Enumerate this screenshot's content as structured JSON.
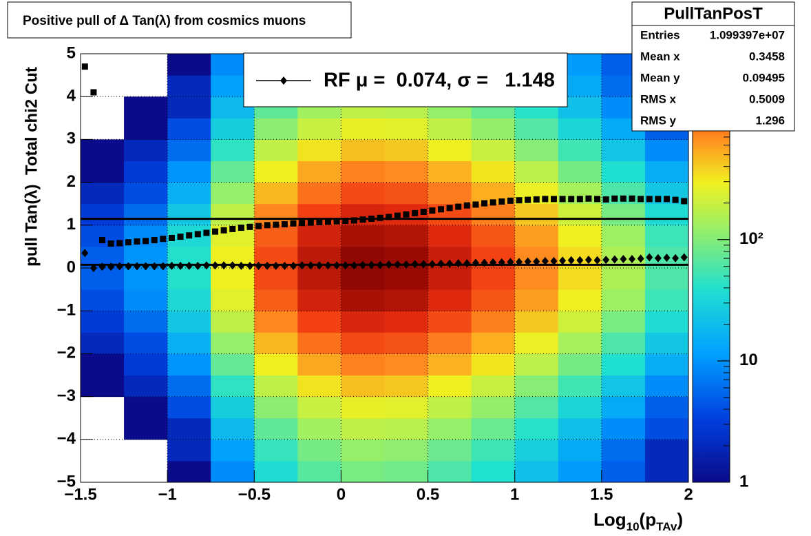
{
  "chart_data": {
    "type": "heatmap",
    "title": "Positive pull of Δ Tan(λ) from cosmics muons",
    "xlabel": [
      "Log",
      "10",
      "(p",
      "TAv",
      ")"
    ],
    "ylabel": "pull Tan(λ)  Total chi2 Cut",
    "xlim": [
      -1.5,
      2
    ],
    "ylim": [
      -5,
      5
    ],
    "zlim": [
      1,
      3400
    ],
    "zlog": true,
    "grid": true,
    "xticks": [
      {
        "value": -1.5,
        "label": "−1.5"
      },
      {
        "value": -1,
        "label": "−1"
      },
      {
        "value": -0.5,
        "label": "−0.5"
      },
      0,
      0.5,
      1,
      1.5,
      2
    ],
    "yticks": [
      {
        "value": -5,
        "label": "−5"
      },
      {
        "value": -4,
        "label": "−4"
      },
      {
        "value": -3,
        "label": "−3"
      },
      {
        "value": -2,
        "label": "−2"
      },
      {
        "value": -1,
        "label": "−1"
      },
      0,
      1,
      2,
      3,
      4,
      5
    ],
    "zticks": [
      1,
      10,
      {
        "value": 100,
        "label": "10²"
      }
    ],
    "x_bins": [
      -1.5,
      -1.25,
      -1,
      -0.75,
      -0.5,
      -0.25,
      0,
      0.25,
      0.5,
      0.75,
      1,
      1.25,
      1.5,
      1.75,
      2
    ],
    "y_bins": [
      -5,
      -4.5,
      -4,
      -3.5,
      -3,
      -2.5,
      -2,
      -1.5,
      -1,
      -0.5,
      0,
      0.5,
      1,
      1.5,
      2,
      2.5,
      3,
      3.5,
      4,
      4.5,
      5
    ],
    "values": [
      [
        0,
        0,
        1,
        9,
        36,
        66,
        90,
        84,
        60,
        39,
        21,
        11,
        5,
        2
      ],
      [
        0,
        0,
        2,
        12,
        48,
        88,
        120,
        112,
        80,
        52,
        28,
        14,
        6,
        2
      ],
      [
        0,
        1,
        2,
        18,
        72,
        132,
        180,
        168,
        120,
        78,
        42,
        21,
        9,
        4
      ],
      [
        0,
        1,
        4,
        27,
        108,
        198,
        270,
        252,
        180,
        117,
        63,
        32,
        14,
        5
      ],
      [
        1,
        2,
        6,
        45,
        180,
        330,
        450,
        420,
        300,
        195,
        105,
        53,
        23,
        9
      ],
      [
        1,
        3,
        10,
        75,
        300,
        550,
        750,
        700,
        500,
        325,
        175,
        88,
        38,
        15
      ],
      [
        2,
        4,
        16,
        120,
        480,
        880,
        1200,
        1120,
        800,
        520,
        280,
        140,
        60,
        24
      ],
      [
        3,
        6,
        24,
        180,
        720,
        1320,
        1800,
        1680,
        1200,
        780,
        420,
        210,
        90,
        36
      ],
      [
        4,
        9,
        34,
        255,
        1020,
        1870,
        2550,
        2380,
        1700,
        1105,
        595,
        298,
        128,
        51
      ],
      [
        5,
        10,
        40,
        300,
        1200,
        2200,
        3000,
        2800,
        2000,
        1300,
        700,
        350,
        150,
        60
      ],
      [
        5,
        10,
        40,
        300,
        1200,
        2200,
        3000,
        2800,
        2000,
        1300,
        700,
        350,
        150,
        60
      ],
      [
        4,
        9,
        34,
        255,
        1020,
        1870,
        2550,
        2380,
        1700,
        1105,
        595,
        298,
        128,
        51
      ],
      [
        3,
        6,
        24,
        180,
        720,
        1320,
        1800,
        1680,
        1200,
        780,
        420,
        210,
        90,
        36
      ],
      [
        2,
        4,
        16,
        120,
        480,
        880,
        1200,
        1120,
        800,
        520,
        280,
        140,
        60,
        24
      ],
      [
        1,
        3,
        10,
        75,
        300,
        550,
        750,
        700,
        500,
        325,
        175,
        88,
        38,
        15
      ],
      [
        1,
        2,
        6,
        45,
        180,
        330,
        450,
        420,
        300,
        195,
        105,
        53,
        23,
        9
      ],
      [
        0,
        1,
        4,
        27,
        108,
        198,
        270,
        252,
        180,
        117,
        63,
        32,
        14,
        5
      ],
      [
        0,
        1,
        2,
        18,
        72,
        132,
        180,
        168,
        120,
        78,
        42,
        21,
        9,
        4
      ],
      [
        0,
        0,
        2,
        12,
        48,
        88,
        120,
        112,
        80,
        52,
        28,
        14,
        6,
        2
      ],
      [
        0,
        0,
        1,
        9,
        36,
        66,
        90,
        84,
        60,
        39,
        21,
        11,
        5,
        2
      ]
    ],
    "x": [
      -1.475,
      -1.425,
      -1.375,
      -1.325,
      -1.275,
      -1.225,
      -1.175,
      -1.125,
      -1.075,
      -1.025,
      -0.975,
      -0.925,
      -0.875,
      -0.825,
      -0.775,
      -0.725,
      -0.675,
      -0.625,
      -0.575,
      -0.525,
      -0.475,
      -0.425,
      -0.375,
      -0.325,
      -0.275,
      -0.225,
      -0.175,
      -0.125,
      -0.075,
      -0.025,
      0.025,
      0.075,
      0.125,
      0.175,
      0.225,
      0.275,
      0.325,
      0.375,
      0.425,
      0.475,
      0.525,
      0.575,
      0.625,
      0.675,
      0.725,
      0.775,
      0.825,
      0.875,
      0.925,
      0.975,
      1.025,
      1.075,
      1.125,
      1.175,
      1.225,
      1.275,
      1.325,
      1.375,
      1.425,
      1.475,
      1.525,
      1.575,
      1.625,
      1.675,
      1.725,
      1.775,
      1.825,
      1.875,
      1.925,
      1.975
    ],
    "series": [
      {
        "name": "RF μ =  0.074, σ =   1.148",
        "marker": "diamond",
        "color": "#000000",
        "fit_value": 0.074,
        "values": [
          0.35,
          0.0,
          0.03,
          0.03,
          0.04,
          0.04,
          0.04,
          0.04,
          0.04,
          0.04,
          0.05,
          0.05,
          0.05,
          0.05,
          0.06,
          0.06,
          0.06,
          0.06,
          0.05,
          0.05,
          0.05,
          0.05,
          0.05,
          0.05,
          0.05,
          0.06,
          0.06,
          0.06,
          0.06,
          0.06,
          0.06,
          0.06,
          0.07,
          0.07,
          0.07,
          0.08,
          0.08,
          0.08,
          0.09,
          0.09,
          0.09,
          0.1,
          0.1,
          0.11,
          0.11,
          0.12,
          0.12,
          0.13,
          0.13,
          0.14,
          0.14,
          0.15,
          0.15,
          0.16,
          0.16,
          0.17,
          0.18,
          0.18,
          0.19,
          0.18,
          0.19,
          0.2,
          0.21,
          0.21,
          0.22,
          0.25,
          0.23,
          0.24,
          0.23,
          0.25
        ]
      },
      {
        "marker": "square",
        "color": "#000000",
        "fit_value": 1.148,
        "values": [
          4.7,
          4.1,
          0.65,
          0.57,
          0.58,
          0.6,
          0.62,
          0.63,
          0.65,
          0.68,
          0.7,
          0.73,
          0.76,
          0.79,
          0.82,
          0.85,
          0.88,
          0.91,
          0.94,
          0.96,
          0.98,
          1.0,
          1.01,
          1.02,
          1.04,
          1.05,
          1.06,
          1.07,
          1.08,
          1.09,
          1.1,
          1.11,
          1.13,
          1.15,
          1.17,
          1.19,
          1.22,
          1.25,
          1.28,
          1.31,
          1.34,
          1.37,
          1.4,
          1.43,
          1.46,
          1.48,
          1.51,
          1.53,
          1.55,
          1.57,
          1.58,
          1.59,
          1.6,
          1.61,
          1.61,
          1.61,
          1.61,
          1.61,
          1.62,
          1.61,
          1.6,
          1.62,
          1.62,
          1.62,
          1.61,
          1.61,
          1.61,
          1.61,
          1.59,
          1.56
        ]
      }
    ],
    "stats": {
      "title": "PullTanPosT",
      "rows": [
        [
          "Entries",
          "1.099397e+07"
        ],
        [
          "Mean x",
          0.3458
        ],
        [
          "Mean y",
          0.09495
        ],
        [
          "RMS x",
          0.5009
        ],
        [
          "RMS y",
          1.296
        ]
      ]
    }
  }
}
